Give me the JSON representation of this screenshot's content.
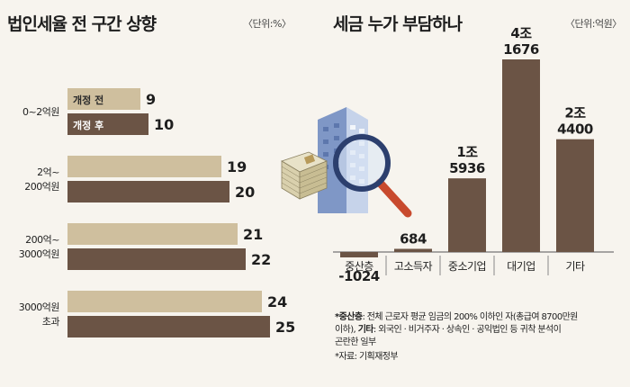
{
  "colors": {
    "before": "#cfbf9e",
    "after": "#6b5445",
    "dark": "#6b5445",
    "bg": "#f7f4ee",
    "axis": "#555555"
  },
  "left_panel": {
    "title": "법인세율 전 구간 상향",
    "unit": "〈단위:%〉"
  },
  "right_panel": {
    "title": "세금 누가 부담하나",
    "unit": "〈단위:억원〉"
  },
  "notes": {
    "line1_label": "*중산층",
    "line1_text": ": 전체 근로자 평균 임금의 200% 이하인 자(총급여 8700만원",
    "line2_text": "이하),",
    "line2_label": "기타",
    "line2_rest": ": 외국인 · 비거주자 · 상속인 · 공익법인 등 귀착 분석이",
    "line3_text": "곤란한 일부",
    "line4_text": "*자료: 기획재정부"
  },
  "chart_data": [
    {
      "type": "bar",
      "orientation": "horizontal",
      "title": "법인세율 전 구간 상향",
      "unit": "%",
      "categories": [
        "0~2억원",
        "2억~200억원",
        "200억~3000억원",
        "3000억원 초과"
      ],
      "category_lines": [
        [
          "0~2억원"
        ],
        [
          "2억~",
          "200억원"
        ],
        [
          "200억~",
          "3000억원"
        ],
        [
          "3000억원",
          "초과"
        ]
      ],
      "series": [
        {
          "name": "개정 전",
          "values": [
            9,
            19,
            21,
            24
          ]
        },
        {
          "name": "개정 후",
          "values": [
            10,
            20,
            22,
            25
          ]
        }
      ],
      "xlim": [
        0,
        25
      ],
      "legend_placement": "inside first category bars"
    },
    {
      "type": "bar",
      "orientation": "vertical",
      "title": "세금 누가 부담하나",
      "unit": "억원",
      "categories": [
        "중산층",
        "고소득자",
        "중소기업",
        "대기업",
        "기타"
      ],
      "values": [
        -1024,
        684,
        15936,
        41676,
        24400
      ],
      "value_labels": [
        [
          "-1024"
        ],
        [
          "684"
        ],
        [
          "1조",
          "5936"
        ],
        [
          "4조",
          "1676"
        ],
        [
          "2조",
          "4400"
        ]
      ],
      "ylim": [
        -1024,
        41676
      ]
    }
  ]
}
